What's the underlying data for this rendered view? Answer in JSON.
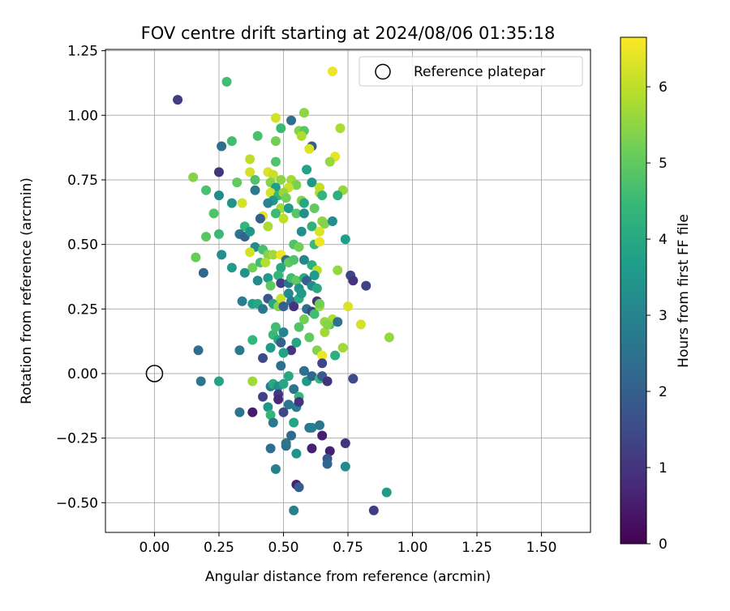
{
  "chart_data": {
    "type": "scatter",
    "title": "FOV centre drift starting at 2024/08/06 01:35:18",
    "xlabel": "Angular distance from reference (arcmin)",
    "ylabel": "Rotation from reference (arcmin)",
    "xlim": [
      -0.19,
      1.69
    ],
    "ylim": [
      -0.615,
      1.255
    ],
    "x_ticks": [
      0.0,
      0.25,
      0.5,
      0.75,
      1.0,
      1.25,
      1.5
    ],
    "y_ticks": [
      -0.5,
      -0.25,
      0.0,
      0.25,
      0.5,
      0.75,
      1.0,
      1.25
    ],
    "grid": true,
    "legend": {
      "placement": "top-right",
      "entries": [
        "Reference platepar"
      ]
    },
    "reference_point": {
      "x": 0.0,
      "y": 0.0
    },
    "colorbar": {
      "label": "Hours from first FF file",
      "colormap": "viridis",
      "range": [
        0,
        6.65
      ],
      "ticks": [
        0,
        1,
        2,
        3,
        4,
        5,
        6
      ]
    },
    "colormap_stops": [
      "#440154",
      "#482878",
      "#3e4a89",
      "#31688e",
      "#26828e",
      "#1f9e89",
      "#35b779",
      "#6ece58",
      "#b5de2b",
      "#fde725"
    ],
    "points": [
      [
        0.09,
        1.06,
        1.2
      ],
      [
        0.28,
        1.13,
        4.6
      ],
      [
        0.69,
        1.17,
        6.5
      ],
      [
        0.47,
        0.99,
        6.2
      ],
      [
        0.53,
        0.98,
        2.4
      ],
      [
        0.58,
        1.01,
        5.5
      ],
      [
        0.56,
        0.94,
        5.4
      ],
      [
        0.58,
        0.94,
        4.9
      ],
      [
        0.57,
        0.92,
        5.8
      ],
      [
        0.49,
        0.95,
        4.5
      ],
      [
        0.61,
        0.88,
        2.0
      ],
      [
        0.6,
        0.87,
        6.3
      ],
      [
        0.72,
        0.95,
        5.8
      ],
      [
        0.26,
        0.88,
        2.4
      ],
      [
        0.3,
        0.9,
        4.6
      ],
      [
        0.4,
        0.92,
        4.7
      ],
      [
        0.47,
        0.9,
        5.2
      ],
      [
        0.7,
        0.84,
        6.4
      ],
      [
        0.68,
        0.82,
        5.6
      ],
      [
        0.37,
        0.83,
        6.0
      ],
      [
        0.47,
        0.82,
        4.8
      ],
      [
        0.15,
        0.76,
        5.4
      ],
      [
        0.25,
        0.78,
        1.0
      ],
      [
        0.37,
        0.78,
        6.2
      ],
      [
        0.44,
        0.78,
        6.3
      ],
      [
        0.46,
        0.77,
        6.1
      ],
      [
        0.59,
        0.79,
        3.8
      ],
      [
        0.32,
        0.74,
        5.0
      ],
      [
        0.39,
        0.75,
        4.8
      ],
      [
        0.45,
        0.74,
        5.4
      ],
      [
        0.49,
        0.75,
        5.5
      ],
      [
        0.53,
        0.75,
        5.7
      ],
      [
        0.55,
        0.73,
        5.3
      ],
      [
        0.52,
        0.72,
        6.1
      ],
      [
        0.61,
        0.74,
        3.5
      ],
      [
        0.47,
        0.72,
        3.7
      ],
      [
        0.2,
        0.71,
        4.7
      ],
      [
        0.25,
        0.69,
        3.2
      ],
      [
        0.39,
        0.71,
        2.7
      ],
      [
        0.45,
        0.7,
        6.2
      ],
      [
        0.48,
        0.69,
        4.4
      ],
      [
        0.5,
        0.7,
        5.6
      ],
      [
        0.51,
        0.68,
        5.2
      ],
      [
        0.46,
        0.67,
        3.5
      ],
      [
        0.57,
        0.67,
        5.4
      ],
      [
        0.58,
        0.66,
        4.0
      ],
      [
        0.64,
        0.7,
        5.8
      ],
      [
        0.64,
        0.72,
        6.0
      ],
      [
        0.65,
        0.69,
        4.4
      ],
      [
        0.73,
        0.71,
        5.6
      ],
      [
        0.71,
        0.69,
        4.2
      ],
      [
        0.23,
        0.62,
        4.8
      ],
      [
        0.3,
        0.66,
        3.4
      ],
      [
        0.34,
        0.66,
        6.2
      ],
      [
        0.44,
        0.66,
        3.0
      ],
      [
        0.49,
        0.64,
        5.7
      ],
      [
        0.52,
        0.64,
        3.6
      ],
      [
        0.55,
        0.62,
        4.9
      ],
      [
        0.58,
        0.62,
        3.3
      ],
      [
        0.62,
        0.64,
        5.0
      ],
      [
        0.47,
        0.62,
        4.5
      ],
      [
        0.42,
        0.61,
        6.4
      ],
      [
        0.41,
        0.6,
        2.0
      ],
      [
        0.5,
        0.6,
        6.0
      ],
      [
        0.44,
        0.57,
        5.8
      ],
      [
        0.35,
        0.57,
        4.4
      ],
      [
        0.2,
        0.53,
        4.9
      ],
      [
        0.25,
        0.54,
        4.5
      ],
      [
        0.33,
        0.54,
        2.6
      ],
      [
        0.35,
        0.53,
        2.1
      ],
      [
        0.37,
        0.55,
        3.5
      ],
      [
        0.57,
        0.55,
        3.3
      ],
      [
        0.61,
        0.57,
        4.3
      ],
      [
        0.65,
        0.59,
        5.5
      ],
      [
        0.66,
        0.58,
        5.4
      ],
      [
        0.69,
        0.59,
        3.3
      ],
      [
        0.64,
        0.55,
        6.3
      ],
      [
        0.74,
        0.52,
        3.7
      ],
      [
        0.54,
        0.5,
        4.8
      ],
      [
        0.56,
        0.49,
        5.2
      ],
      [
        0.62,
        0.5,
        4.5
      ],
      [
        0.64,
        0.51,
        6.5
      ],
      [
        0.16,
        0.45,
        5.1
      ],
      [
        0.26,
        0.46,
        3.3
      ],
      [
        0.39,
        0.49,
        3.2
      ],
      [
        0.42,
        0.48,
        4.7
      ],
      [
        0.44,
        0.46,
        5.4
      ],
      [
        0.46,
        0.46,
        5.7
      ],
      [
        0.49,
        0.46,
        6.5
      ],
      [
        0.51,
        0.44,
        2.5
      ],
      [
        0.52,
        0.43,
        5.0
      ],
      [
        0.54,
        0.44,
        4.8
      ],
      [
        0.58,
        0.44,
        3.1
      ],
      [
        0.37,
        0.47,
        6.2
      ],
      [
        0.38,
        0.41,
        5.2
      ],
      [
        0.41,
        0.43,
        4.6
      ],
      [
        0.43,
        0.43,
        5.9
      ],
      [
        0.49,
        0.41,
        4.0
      ],
      [
        0.61,
        0.42,
        4.2
      ],
      [
        0.63,
        0.4,
        6.0
      ],
      [
        0.19,
        0.39,
        2.2
      ],
      [
        0.3,
        0.41,
        3.6
      ],
      [
        0.35,
        0.39,
        3.4
      ],
      [
        0.4,
        0.36,
        3.2
      ],
      [
        0.44,
        0.37,
        3.6
      ],
      [
        0.45,
        0.34,
        5.0
      ],
      [
        0.48,
        0.38,
        4.4
      ],
      [
        0.49,
        0.35,
        1.2
      ],
      [
        0.52,
        0.35,
        2.6
      ],
      [
        0.53,
        0.37,
        4.6
      ],
      [
        0.55,
        0.36,
        5.0
      ],
      [
        0.56,
        0.33,
        3.4
      ],
      [
        0.58,
        0.37,
        4.1
      ],
      [
        0.59,
        0.36,
        2.0
      ],
      [
        0.61,
        0.34,
        3.2
      ],
      [
        0.62,
        0.38,
        3.6
      ],
      [
        0.63,
        0.33,
        4.0
      ],
      [
        0.71,
        0.4,
        5.6
      ],
      [
        0.76,
        0.38,
        1.4
      ],
      [
        0.77,
        0.36,
        1.0
      ],
      [
        0.82,
        0.34,
        1.3
      ],
      [
        0.34,
        0.28,
        2.8
      ],
      [
        0.38,
        0.27,
        3.7
      ],
      [
        0.4,
        0.27,
        4.0
      ],
      [
        0.42,
        0.25,
        2.6
      ],
      [
        0.44,
        0.29,
        1.8
      ],
      [
        0.46,
        0.27,
        4.0
      ],
      [
        0.48,
        0.26,
        5.4
      ],
      [
        0.49,
        0.29,
        6.1
      ],
      [
        0.5,
        0.26,
        2.0
      ],
      [
        0.52,
        0.31,
        3.2
      ],
      [
        0.53,
        0.28,
        2.6
      ],
      [
        0.54,
        0.26,
        1.0
      ],
      [
        0.56,
        0.29,
        4.1
      ],
      [
        0.57,
        0.31,
        3.6
      ],
      [
        0.59,
        0.25,
        2.4
      ],
      [
        0.61,
        0.24,
        1.4
      ],
      [
        0.63,
        0.28,
        1.0
      ],
      [
        0.64,
        0.26,
        5.7
      ],
      [
        0.64,
        0.27,
        5.2
      ],
      [
        0.66,
        0.2,
        5.6
      ],
      [
        0.68,
        0.19,
        4.8
      ],
      [
        0.69,
        0.21,
        5.8
      ],
      [
        0.71,
        0.2,
        2.5
      ],
      [
        0.75,
        0.26,
        6.3
      ],
      [
        0.8,
        0.19,
        6.2
      ],
      [
        0.91,
        0.14,
        5.6
      ],
      [
        0.17,
        0.09,
        2.4
      ],
      [
        0.33,
        0.09,
        2.7
      ],
      [
        0.38,
        0.13,
        4.4
      ],
      [
        0.42,
        0.06,
        1.5
      ],
      [
        0.45,
        0.1,
        3.6
      ],
      [
        0.46,
        0.15,
        4.5
      ],
      [
        0.47,
        0.18,
        4.6
      ],
      [
        0.48,
        0.13,
        4.0
      ],
      [
        0.49,
        0.12,
        2.0
      ],
      [
        0.5,
        0.16,
        3.0
      ],
      [
        0.53,
        0.09,
        1.0
      ],
      [
        0.55,
        0.12,
        3.9
      ],
      [
        0.56,
        0.18,
        4.8
      ],
      [
        0.58,
        0.21,
        5.2
      ],
      [
        0.6,
        0.14,
        5.0
      ],
      [
        0.63,
        0.09,
        5.4
      ],
      [
        0.65,
        0.07,
        6.5
      ],
      [
        0.66,
        0.16,
        5.7
      ],
      [
        0.67,
        0.19,
        5.4
      ],
      [
        0.7,
        0.07,
        4.2
      ],
      [
        0.73,
        0.1,
        5.7
      ],
      [
        0.62,
        0.23,
        4.6
      ],
      [
        0.5,
        0.08,
        3.8
      ],
      [
        0.18,
        -0.03,
        2.6
      ],
      [
        0.25,
        -0.03,
        3.8
      ],
      [
        0.38,
        -0.03,
        5.7
      ],
      [
        0.45,
        -0.05,
        2.8
      ],
      [
        0.46,
        -0.04,
        4.0
      ],
      [
        0.48,
        -0.05,
        3.2
      ],
      [
        0.48,
        -0.08,
        1.1
      ],
      [
        0.49,
        0.03,
        2.4
      ],
      [
        0.5,
        -0.04,
        3.9
      ],
      [
        0.52,
        -0.01,
        4.0
      ],
      [
        0.54,
        -0.06,
        2.6
      ],
      [
        0.56,
        -0.09,
        4.4
      ],
      [
        0.58,
        0.01,
        2.4
      ],
      [
        0.59,
        -0.03,
        3.6
      ],
      [
        0.61,
        -0.01,
        2.2
      ],
      [
        0.64,
        -0.02,
        4.4
      ],
      [
        0.65,
        0.04,
        1.4
      ],
      [
        0.65,
        -0.01,
        1.9
      ],
      [
        0.67,
        -0.03,
        1.0
      ],
      [
        0.77,
        -0.02,
        1.5
      ],
      [
        0.33,
        -0.15,
        2.5
      ],
      [
        0.38,
        -0.15,
        0.5
      ],
      [
        0.42,
        -0.09,
        1.3
      ],
      [
        0.44,
        -0.13,
        3.5
      ],
      [
        0.45,
        -0.16,
        4.4
      ],
      [
        0.46,
        -0.19,
        2.7
      ],
      [
        0.48,
        -0.1,
        0.8
      ],
      [
        0.5,
        -0.15,
        1.4
      ],
      [
        0.52,
        -0.12,
        2.6
      ],
      [
        0.54,
        -0.19,
        3.9
      ],
      [
        0.55,
        -0.13,
        2.8
      ],
      [
        0.56,
        -0.11,
        1.0
      ],
      [
        0.6,
        -0.21,
        2.6
      ],
      [
        0.61,
        -0.21,
        2.8
      ],
      [
        0.64,
        -0.2,
        2.6
      ],
      [
        0.65,
        -0.24,
        0.6
      ],
      [
        0.45,
        -0.29,
        2.4
      ],
      [
        0.47,
        -0.37,
        2.9
      ],
      [
        0.51,
        -0.28,
        2.4
      ],
      [
        0.51,
        -0.27,
        2.6
      ],
      [
        0.53,
        -0.24,
        2.3
      ],
      [
        0.55,
        -0.31,
        3.4
      ],
      [
        0.61,
        -0.29,
        0.6
      ],
      [
        0.68,
        -0.3,
        0.6
      ],
      [
        0.67,
        -0.33,
        1.8
      ],
      [
        0.67,
        -0.35,
        2.2
      ],
      [
        0.74,
        -0.27,
        1.0
      ],
      [
        0.74,
        -0.36,
        3.2
      ],
      [
        0.55,
        -0.43,
        0.6
      ],
      [
        0.56,
        -0.44,
        1.9
      ],
      [
        0.54,
        -0.53,
        2.9
      ],
      [
        0.85,
        -0.53,
        1.2
      ],
      [
        0.9,
        -0.46,
        3.6
      ]
    ]
  }
}
